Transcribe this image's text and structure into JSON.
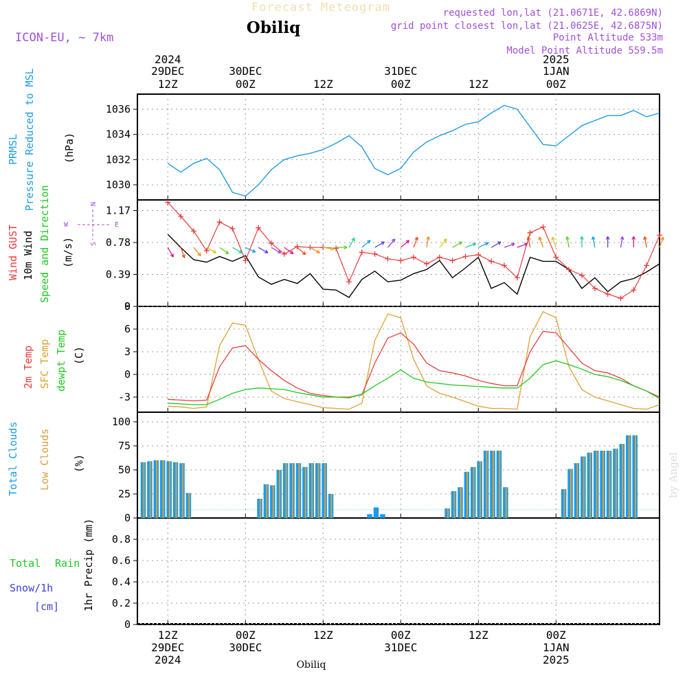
{
  "header": {
    "title": "Forecast Meteogram",
    "location": "Obiliq",
    "model": "ICON-EU, ~ 7km",
    "requested": "requested lon,lat (21.0671E, 42.6869N)",
    "gridpoint": "grid point closest lon,lat (21.0625E, 42.6875N)",
    "point_alt": "Point Altitude 533m",
    "model_alt": "Model Point Altitude 559.5m",
    "footer_location": "Obiliq",
    "watermark": "by Angel"
  },
  "colors": {
    "pressure": "#1e9be6",
    "gust": "#e83c3c",
    "wind": "#000000",
    "t2m": "#e83c3c",
    "sfc": "#e0a030",
    "dewpt": "#1ec81e",
    "total_clouds": "#1e9be6",
    "low_clouds": "#d8a040",
    "rain": "#1ec81e",
    "snow": "#3c3ce6",
    "purple": "#a050d8"
  },
  "time_axis": {
    "top": [
      {
        "l1": "2024",
        "l2": "29DEC",
        "l3": "12Z"
      },
      {
        "l1": "",
        "l2": "30DEC",
        "l3": "00Z"
      },
      {
        "l1": "",
        "l2": "",
        "l3": "12Z"
      },
      {
        "l1": "",
        "l2": "31DEC",
        "l3": "00Z"
      },
      {
        "l1": "",
        "l2": "",
        "l3": "12Z"
      },
      {
        "l1": "2025",
        "l2": "1JAN",
        "l3": "00Z"
      }
    ],
    "bottom": [
      {
        "l1": "12Z",
        "l2": "29DEC",
        "l3": "2024"
      },
      {
        "l1": "00Z",
        "l2": "30DEC",
        "l3": ""
      },
      {
        "l1": "12Z",
        "l2": "",
        "l3": ""
      },
      {
        "l1": "00Z",
        "l2": "31DEC",
        "l3": ""
      },
      {
        "l1": "12Z",
        "l2": "",
        "l3": ""
      },
      {
        "l1": "00Z",
        "l2": "1JAN",
        "l3": "2025"
      }
    ]
  },
  "panels": {
    "pressure": {
      "label1": "PRMSL",
      "label2": "Pressure Reduced to MSL",
      "unit": "(hPa)"
    },
    "wind": {
      "label_gust": "Wind GUST",
      "label_wind": "10m Wind",
      "label_dir": "Speed and Direction",
      "unit": "(m/s)",
      "compass_n": "N",
      "compass_s": "S",
      "compass_w": "W",
      "compass_e": "E"
    },
    "temp": {
      "label_t2m": "2m Temp",
      "label_sfc": "SFC Temp",
      "label_dew": "dewpt Temp",
      "unit": "(C)"
    },
    "clouds": {
      "label_total": "Total Clouds",
      "label_low": "Low Clouds",
      "unit": "(%)"
    },
    "precip": {
      "label_rain1": "Total",
      "label_rain2": "Rain",
      "label_snow": "Snow/1h",
      "label_cm": "[cm]",
      "label_axis": "1hr Precip (mm)"
    }
  },
  "chart_data": [
    {
      "type": "line",
      "name": "PRMSL",
      "ylabel": "(hPa)",
      "yticks": [
        "1030",
        "1032",
        "1034",
        "1036"
      ],
      "ylim": [
        1028.8,
        1037.2
      ],
      "x_hours": [
        0,
        2,
        4,
        6,
        8,
        10,
        12,
        14,
        16,
        18,
        20,
        22,
        24,
        26,
        28,
        30,
        32,
        34,
        36,
        38,
        40,
        42,
        44,
        46,
        48,
        50,
        52,
        54,
        56,
        58,
        60,
        62,
        64,
        66,
        68,
        70,
        72,
        74,
        76
      ],
      "values": [
        1031.7,
        1031.0,
        1031.7,
        1032.1,
        1031.2,
        1029.4,
        1029.1,
        1030.0,
        1031.2,
        1032.0,
        1032.3,
        1032.5,
        1032.8,
        1033.3,
        1033.9,
        1033.0,
        1031.3,
        1030.8,
        1031.3,
        1032.6,
        1033.4,
        1033.9,
        1034.3,
        1034.8,
        1035.0,
        1035.7,
        1036.3,
        1036.0,
        1034.6,
        1033.2,
        1033.1,
        1033.9,
        1034.7,
        1035.1,
        1035.5,
        1035.5,
        1035.9,
        1035.4,
        1035.7
      ],
      "grid": true
    },
    {
      "type": "line",
      "name": "Wind",
      "ylabel": "(m/s)",
      "yticks": [
        "0",
        "0.39",
        "0.78",
        "1.17"
      ],
      "ylim": [
        0,
        1.3
      ],
      "x_hours": [
        0,
        2,
        4,
        6,
        8,
        10,
        12,
        14,
        16,
        18,
        20,
        22,
        24,
        26,
        28,
        30,
        32,
        34,
        36,
        38,
        40,
        42,
        44,
        46,
        48,
        50,
        52,
        54,
        56,
        58,
        60,
        62,
        64,
        66,
        68,
        70,
        72,
        74,
        76
      ],
      "gust": [
        1.27,
        1.1,
        0.92,
        0.68,
        1.03,
        0.95,
        0.56,
        0.96,
        0.77,
        0.64,
        0.73,
        0.72,
        0.72,
        0.71,
        0.3,
        0.66,
        0.64,
        0.58,
        0.56,
        0.6,
        0.52,
        0.6,
        0.56,
        0.61,
        0.63,
        0.55,
        0.5,
        0.35,
        0.9,
        0.97,
        0.6,
        0.45,
        0.38,
        0.22,
        0.15,
        0.1,
        0.2,
        0.5,
        0.87
      ],
      "wind": [
        0.88,
        0.72,
        0.57,
        0.54,
        0.61,
        0.55,
        0.62,
        0.36,
        0.27,
        0.33,
        0.28,
        0.4,
        0.21,
        0.2,
        0.11,
        0.33,
        0.43,
        0.3,
        0.32,
        0.4,
        0.45,
        0.56,
        0.35,
        0.47,
        0.6,
        0.22,
        0.29,
        0.15,
        0.6,
        0.55,
        0.55,
        0.45,
        0.22,
        0.35,
        0.18,
        0.3,
        0.34,
        0.42,
        0.52
      ],
      "wind_dir_deg": [
        330,
        340,
        320,
        300,
        305,
        300,
        295,
        300,
        300,
        305,
        310,
        300,
        280,
        270,
        210,
        230,
        240,
        220,
        230,
        200,
        190,
        220,
        240,
        250,
        245,
        240,
        250,
        250,
        170,
        160,
        160,
        170,
        180,
        170,
        180,
        190,
        180,
        170,
        200
      ],
      "grid": true
    },
    {
      "type": "line",
      "name": "Temperature",
      "ylabel": "(C)",
      "yticks": [
        "-3",
        "0",
        "3",
        "6",
        "9"
      ],
      "ylim": [
        -5,
        9
      ],
      "x_hours": [
        0,
        2,
        4,
        6,
        8,
        10,
        12,
        14,
        16,
        18,
        20,
        22,
        24,
        26,
        28,
        30,
        32,
        34,
        36,
        38,
        40,
        42,
        44,
        46,
        48,
        50,
        52,
        54,
        56,
        58,
        60,
        62,
        64,
        66,
        68,
        70,
        72,
        74,
        76
      ],
      "t2m": [
        -3.3,
        -3.4,
        -3.5,
        -3.4,
        1.0,
        3.5,
        3.8,
        2.0,
        0.5,
        -0.8,
        -1.8,
        -2.5,
        -2.8,
        -3.0,
        -3.0,
        -2.7,
        1.5,
        4.8,
        5.5,
        4.0,
        1.5,
        0.5,
        0.2,
        -0.2,
        -0.8,
        -1.2,
        -1.5,
        -1.5,
        3.0,
        5.7,
        5.5,
        3.5,
        1.5,
        0.5,
        0.2,
        -0.5,
        -1.5,
        -2.2,
        -3.0
      ],
      "sfc": [
        -4.2,
        -4.3,
        -4.5,
        -4.3,
        3.8,
        6.8,
        6.5,
        2.0,
        -2.2,
        -3.2,
        -3.6,
        -4.0,
        -4.4,
        -4.5,
        -4.6,
        -3.8,
        4.5,
        8.0,
        7.5,
        2.0,
        -1.5,
        -2.5,
        -3.0,
        -3.6,
        -4.2,
        -4.5,
        -4.5,
        -4.6,
        5.0,
        8.3,
        7.5,
        1.0,
        -2.0,
        -3.0,
        -3.5,
        -4.0,
        -4.5,
        -4.6,
        -4.0
      ],
      "dewpt": [
        -3.8,
        -3.9,
        -4.0,
        -4.0,
        -3.3,
        -2.5,
        -2.0,
        -1.8,
        -1.9,
        -2.0,
        -2.4,
        -2.7,
        -3.0,
        -3.0,
        -3.1,
        -2.6,
        -1.5,
        -0.5,
        0.6,
        -0.5,
        -1.0,
        -1.2,
        -1.4,
        -1.5,
        -1.6,
        -1.7,
        -1.8,
        -1.8,
        -0.5,
        1.3,
        1.8,
        1.3,
        0.7,
        0.0,
        -0.3,
        -0.8,
        -1.5,
        -2.2,
        -3.2
      ],
      "grid": true
    },
    {
      "type": "bar",
      "name": "Clouds",
      "ylabel": "(%)",
      "yticks": [
        "0",
        "25",
        "50",
        "75",
        "100"
      ],
      "ylim": [
        0,
        110
      ],
      "x_hours": [
        0,
        1,
        2,
        3,
        4,
        5,
        6,
        7,
        8,
        9,
        10,
        11,
        12,
        13,
        14,
        15,
        16,
        17,
        18,
        19,
        20,
        21,
        22,
        23,
        24,
        25,
        26,
        27,
        28,
        29,
        30,
        31,
        32,
        33,
        34,
        35,
        36,
        37,
        38,
        39,
        40,
        41,
        42,
        43,
        44,
        45,
        46,
        47,
        48,
        49,
        50,
        51,
        52,
        53,
        54,
        55,
        56,
        57,
        58,
        59,
        60,
        61,
        62,
        63,
        64,
        65,
        66,
        67,
        68,
        69,
        70,
        71,
        72,
        73,
        74,
        75,
        76
      ],
      "total": [
        58,
        59,
        60,
        60,
        59,
        58,
        57,
        26,
        0,
        0,
        0,
        0,
        0,
        0,
        0,
        0,
        0,
        0,
        20,
        35,
        34,
        50,
        57,
        57,
        57,
        53,
        57,
        57,
        57,
        25,
        0,
        0,
        0,
        0,
        0,
        4,
        11,
        4,
        0,
        0,
        0,
        0,
        0,
        0,
        0,
        0,
        0,
        10,
        28,
        32,
        48,
        53,
        59,
        70,
        70,
        70,
        32,
        0,
        0,
        0,
        0,
        0,
        0,
        0,
        0,
        30,
        51,
        57,
        64,
        68,
        70,
        70,
        70,
        72,
        77,
        86,
        86
      ],
      "low": [
        58,
        59,
        60,
        60,
        59,
        58,
        57,
        26,
        0,
        0,
        0,
        0,
        0,
        0,
        0,
        0,
        0,
        0,
        20,
        35,
        34,
        50,
        57,
        57,
        57,
        53,
        57,
        57,
        57,
        25,
        0,
        0,
        0,
        0,
        0,
        0,
        0,
        0,
        0,
        0,
        0,
        0,
        0,
        0,
        0,
        0,
        0,
        10,
        28,
        32,
        48,
        53,
        59,
        70,
        70,
        70,
        32,
        0,
        0,
        0,
        0,
        0,
        0,
        0,
        0,
        30,
        51,
        57,
        64,
        68,
        70,
        70,
        70,
        72,
        77,
        86,
        86
      ],
      "grid": true
    },
    {
      "type": "bar",
      "name": "Precipitation",
      "ylabel": "1hr Precip (mm)",
      "yticks": [
        "0",
        "0.2",
        "0.4",
        "0.6",
        "0.8"
      ],
      "ylim": [
        0,
        1.0
      ],
      "rain": [],
      "snow": [],
      "grid": true
    }
  ]
}
